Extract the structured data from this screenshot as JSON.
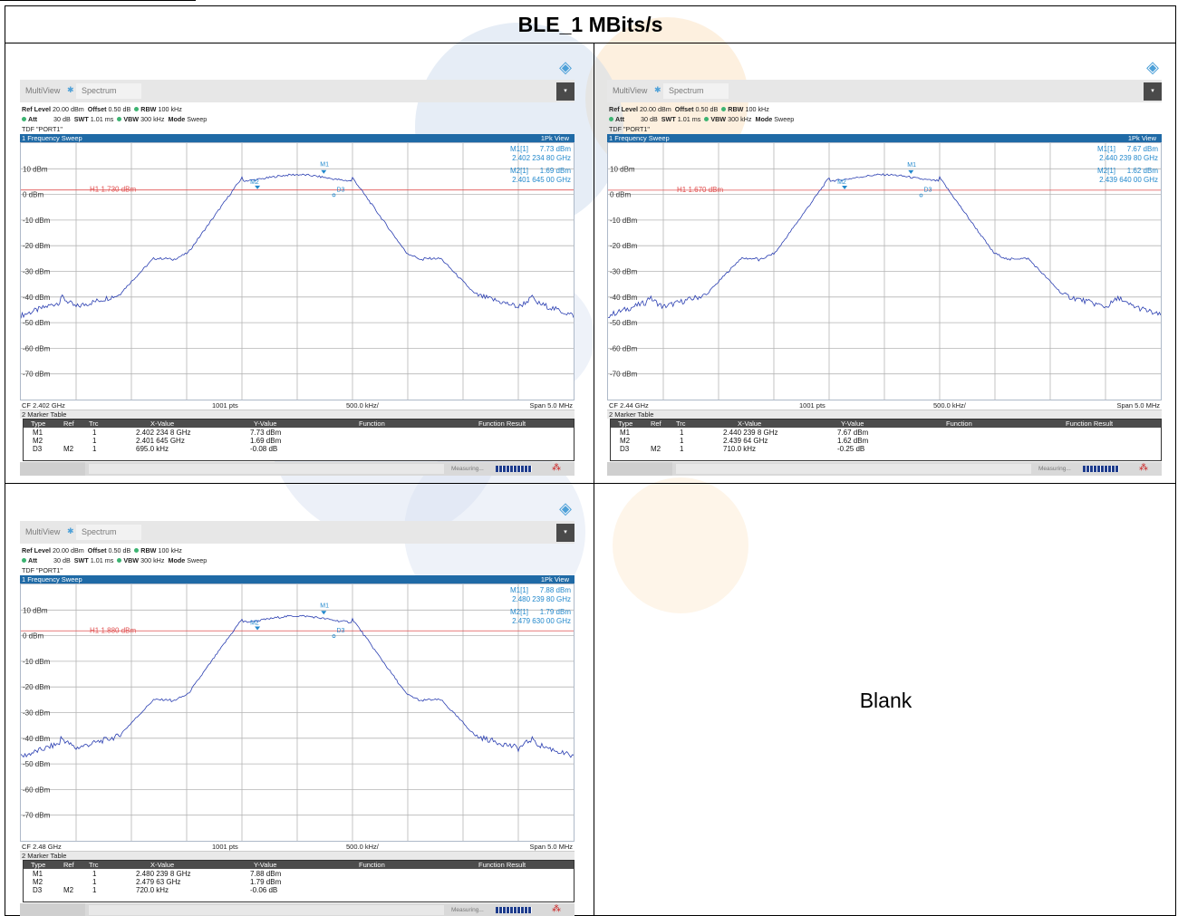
{
  "title": "BLE_1 MBits/s",
  "blank_label": "Blank",
  "common": {
    "tab_multiview": "MultiView",
    "tab_spectrum": "Spectrum",
    "ref_level_label": "Ref Level",
    "ref_level": "20.00 dBm",
    "offset_label": "Offset",
    "offset": "0.50 dB",
    "rbw_label": "RBW",
    "rbw": "100 kHz",
    "att_label": "Att",
    "att": "30 dB",
    "swt_label": "SWT",
    "swt": "1.01 ms",
    "vbw_label": "VBW",
    "vbw": "300 kHz",
    "mode_label": "Mode",
    "mode": "Sweep",
    "tdf": "TDF \"PORT1\"",
    "sweep_title": "1 Frequency Sweep",
    "view": "1Pk View",
    "points": "1001 pts",
    "div": "500.0 kHz/",
    "span": "Span 5.0 MHz",
    "marker_table_title": "2 Marker Table",
    "col_type": "Type",
    "col_ref": "Ref",
    "col_trc": "Trc",
    "col_xvalue": "X-Value",
    "col_yvalue": "Y-Value",
    "col_function": "Function",
    "col_function_result": "Function Result",
    "measuring": "Measuring...",
    "y_labels": [
      "10 dBm",
      "0 dBm",
      "-10 dBm",
      "-20 dBm",
      "-30 dBm",
      "-40 dBm",
      "-50 dBm",
      "-60 dBm",
      "-70 dBm"
    ],
    "m1_label": "M1",
    "m2_label": "M2",
    "d3_label": "D3",
    "m1_readout_label": "M1[1]",
    "m2_readout_label": "M2[1]",
    "trace_color": "#2a3eb1",
    "h1_color": "#e05050",
    "marker_color": "#2288cc"
  },
  "panels": [
    {
      "h1": "H1 1.730 dBm",
      "h1_level": 1.73,
      "cf": "CF 2.402 GHz",
      "m1_level": "7.73 dBm",
      "m1_freq": "2.402 234 80 GHz",
      "m2_level": "1.69 dBm",
      "m2_freq": "2.401 645 00 GHz",
      "rows": [
        {
          "type": "M1",
          "ref": "",
          "trc": "1",
          "x": "2.402 234 8 GHz",
          "y": "7.73 dBm"
        },
        {
          "type": "M2",
          "ref": "",
          "trc": "1",
          "x": "2.401 645 GHz",
          "y": "1.69 dBm"
        },
        {
          "type": "D3",
          "ref": "M2",
          "trc": "1",
          "x": "695.0 kHz",
          "y": "-0.08 dB"
        }
      ]
    },
    {
      "h1": "H1 1.670 dBm",
      "h1_level": 1.67,
      "cf": "CF 2.44 GHz",
      "m1_level": "7.67 dBm",
      "m1_freq": "2.440 239 80 GHz",
      "m2_level": "1.62 dBm",
      "m2_freq": "2.439 640 00 GHz",
      "rows": [
        {
          "type": "M1",
          "ref": "",
          "trc": "1",
          "x": "2.440 239 8 GHz",
          "y": "7.67 dBm"
        },
        {
          "type": "M2",
          "ref": "",
          "trc": "1",
          "x": "2.439 64 GHz",
          "y": "1.62 dBm"
        },
        {
          "type": "D3",
          "ref": "M2",
          "trc": "1",
          "x": "710.0 kHz",
          "y": "-0.25 dB"
        }
      ]
    },
    {
      "h1": "H1 1.880 dBm",
      "h1_level": 1.88,
      "cf": "CF 2.48 GHz",
      "m1_level": "7.88 dBm",
      "m1_freq": "2.480 239 80 GHz",
      "m2_level": "1.79 dBm",
      "m2_freq": "2.479 630 00 GHz",
      "rows": [
        {
          "type": "M1",
          "ref": "",
          "trc": "1",
          "x": "2.480 239 8 GHz",
          "y": "7.88 dBm"
        },
        {
          "type": "M2",
          "ref": "",
          "trc": "1",
          "x": "2.479 63 GHz",
          "y": "1.79 dBm"
        },
        {
          "type": "D3",
          "ref": "M2",
          "trc": "1",
          "x": "720.0 kHz",
          "y": "-0.06 dB"
        }
      ]
    }
  ]
}
